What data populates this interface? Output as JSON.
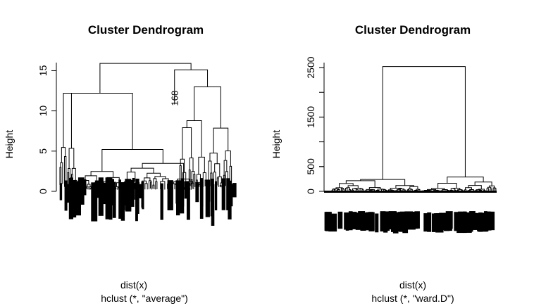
{
  "chart_data": [
    {
      "type": "dendrogram",
      "title": "Cluster Dendrogram",
      "xlabel": "dist(x)",
      "sub": "hclust (*, \"average\")",
      "ylabel": "Height",
      "yticks": [
        0,
        5,
        10,
        15
      ],
      "ylim": [
        0,
        16
      ],
      "root_height": 15.9,
      "main_clusters": [
        {
          "from": 0.0,
          "to": 0.78,
          "height": 12.2
        },
        {
          "from": 0.69,
          "to": 1.0,
          "height": 15.1
        }
      ],
      "labeled_leaf": {
        "label": "168",
        "height": 10.8
      },
      "grid": false,
      "legend": "none"
    },
    {
      "type": "dendrogram",
      "title": "Cluster Dendrogram",
      "xlabel": "dist(x)",
      "sub": "hclust (*, \"ward.D\")",
      "ylabel": "Height",
      "yticks": [
        0,
        500,
        1500,
        2500
      ],
      "ylim": [
        0,
        2600
      ],
      "root_height": 2520,
      "main_clusters": [
        {
          "from": 0.0,
          "to": 0.54,
          "height": 240
        },
        {
          "from": 0.54,
          "to": 1.0,
          "height": 290
        }
      ],
      "grid": false,
      "legend": "none"
    }
  ]
}
